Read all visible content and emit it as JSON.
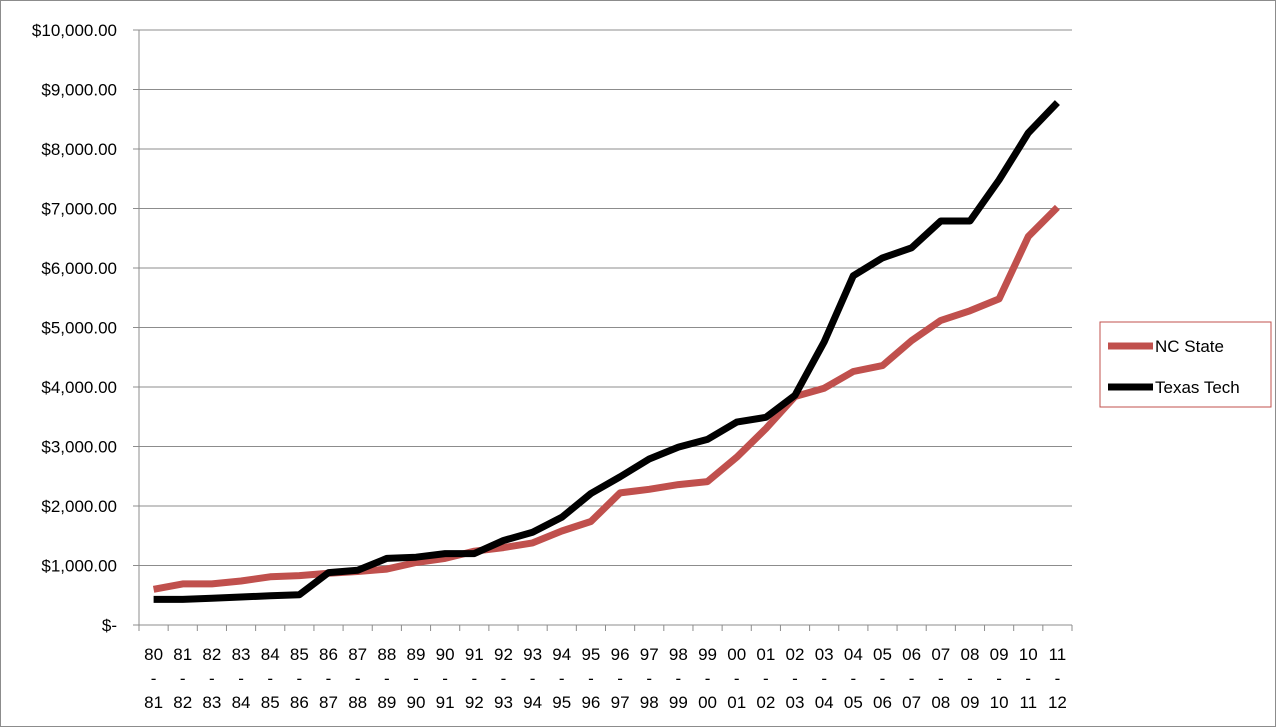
{
  "chart_data": {
    "type": "line",
    "x_labels": [
      [
        "80",
        "-",
        "81"
      ],
      [
        "81",
        "-",
        "82"
      ],
      [
        "82",
        "-",
        "83"
      ],
      [
        "83",
        "-",
        "84"
      ],
      [
        "84",
        "-",
        "85"
      ],
      [
        "85",
        "-",
        "86"
      ],
      [
        "86",
        "-",
        "87"
      ],
      [
        "87",
        "-",
        "88"
      ],
      [
        "88",
        "-",
        "89"
      ],
      [
        "89",
        "-",
        "90"
      ],
      [
        "90",
        "-",
        "91"
      ],
      [
        "91",
        "-",
        "92"
      ],
      [
        "92",
        "-",
        "93"
      ],
      [
        "93",
        "-",
        "94"
      ],
      [
        "94",
        "-",
        "95"
      ],
      [
        "95",
        "-",
        "96"
      ],
      [
        "96",
        "-",
        "97"
      ],
      [
        "97",
        "-",
        "98"
      ],
      [
        "98",
        "-",
        "99"
      ],
      [
        "99",
        "-",
        "00"
      ],
      [
        "00",
        "-",
        "01"
      ],
      [
        "01",
        "-",
        "02"
      ],
      [
        "02",
        "-",
        "03"
      ],
      [
        "03",
        "-",
        "04"
      ],
      [
        "04",
        "-",
        "05"
      ],
      [
        "05",
        "-",
        "06"
      ],
      [
        "06",
        "-",
        "07"
      ],
      [
        "07",
        "-",
        "08"
      ],
      [
        "08",
        "-",
        "09"
      ],
      [
        "09",
        "-",
        "10"
      ],
      [
        "10",
        "-",
        "11"
      ],
      [
        "11",
        "-",
        "12"
      ]
    ],
    "y_ticks": [
      0,
      1000,
      2000,
      3000,
      4000,
      5000,
      6000,
      7000,
      8000,
      9000,
      10000
    ],
    "y_tick_labels": [
      "$-",
      "$1,000.00",
      "$2,000.00",
      "$3,000.00",
      "$4,000.00",
      "$5,000.00",
      "$6,000.00",
      "$7,000.00",
      "$8,000.00",
      "$9,000.00",
      "$10,000.00"
    ],
    "ylim": [
      0,
      10000
    ],
    "grid": true,
    "legend_position": "right",
    "series": [
      {
        "name": "NC State",
        "color": "#c0504d",
        "values": [
          600,
          690,
          690,
          740,
          810,
          830,
          870,
          900,
          940,
          1050,
          1120,
          1240,
          1300,
          1380,
          1580,
          1740,
          2220,
          2280,
          2360,
          2410,
          2820,
          3300,
          3840,
          3980,
          4260,
          4360,
          4780,
          5120,
          5280,
          5480,
          6530,
          7020
        ]
      },
      {
        "name": "Texas Tech",
        "color": "#000000",
        "values": [
          430,
          430,
          450,
          470,
          490,
          510,
          880,
          920,
          1120,
          1140,
          1200,
          1200,
          1420,
          1560,
          1810,
          2210,
          2490,
          2790,
          2990,
          3120,
          3410,
          3490,
          3860,
          4760,
          5870,
          6170,
          6340,
          6790,
          6790,
          7480,
          8270,
          8780
        ]
      }
    ]
  }
}
